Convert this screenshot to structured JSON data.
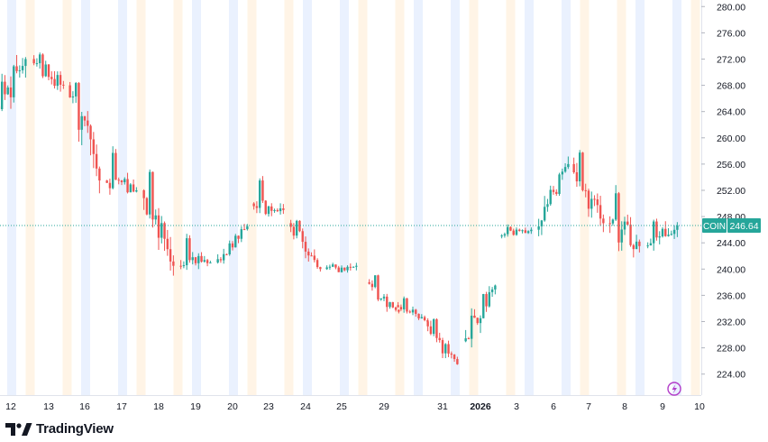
{
  "brand": {
    "logo_text": "TradingView"
  },
  "colors": {
    "up": "#26a69a",
    "down": "#ef5350",
    "price_line": "#26a69a",
    "band_blue": "#eaf1fe",
    "band_orange": "#fff4e6"
  },
  "chart_data": {
    "type": "candlestick",
    "symbol": "COIN",
    "last_price": "246.64",
    "ylim": [
      220.8,
      281.0
    ],
    "y_ticks": [
      "280.00",
      "276.00",
      "272.00",
      "268.00",
      "264.00",
      "260.00",
      "256.00",
      "252.00",
      "248.00",
      "244.00",
      "240.00",
      "236.00",
      "232.00",
      "228.00",
      "224.00"
    ],
    "x_ticks": [
      "12",
      "13",
      "16",
      "17",
      "18",
      "19",
      "20",
      "23",
      "24",
      "25",
      "29",
      "31",
      "2026",
      "3",
      "6",
      "7",
      "8",
      "9",
      "10"
    ],
    "sessions": [
      {
        "label": "12",
        "open": 264.0,
        "high": 278.5,
        "low": 263.5,
        "close": 272.0
      },
      {
        "label": "13",
        "open": 272.0,
        "high": 273.0,
        "low": 262.5,
        "close": 268.0
      },
      {
        "label": "16",
        "open": 268.0,
        "high": 268.5,
        "low": 248.0,
        "close": 253.5
      },
      {
        "label": "17",
        "open": 253.5,
        "high": 259.5,
        "low": 249.5,
        "close": 252.0
      },
      {
        "label": "18",
        "open": 252.0,
        "high": 256.0,
        "low": 239.0,
        "close": 240.5
      },
      {
        "label": "19",
        "open": 240.5,
        "high": 247.0,
        "low": 239.5,
        "close": 241.0
      },
      {
        "label": "20",
        "open": 241.0,
        "high": 248.0,
        "low": 240.5,
        "close": 246.5
      },
      {
        "label": "23",
        "open": 250.0,
        "high": 255.0,
        "low": 248.0,
        "close": 249.0
      },
      {
        "label": "24",
        "open": 247.0,
        "high": 247.5,
        "low": 238.5,
        "close": 240.0
      },
      {
        "label": "25",
        "open": 240.0,
        "high": 241.5,
        "low": 237.0,
        "close": 240.5
      },
      {
        "label": "29",
        "open": 238.0,
        "high": 239.5,
        "low": 233.0,
        "close": 233.5
      },
      {
        "label": "30",
        "open": 234.5,
        "high": 236.0,
        "low": 231.0,
        "close": 232.0
      },
      {
        "label": "31",
        "open": 232.0,
        "high": 232.5,
        "low": 224.8,
        "close": 225.5
      },
      {
        "label": "2026",
        "open": 229.0,
        "high": 238.5,
        "low": 226.0,
        "close": 237.5
      },
      {
        "label": "3",
        "open": 245.0,
        "high": 248.0,
        "low": 244.5,
        "close": 246.0
      },
      {
        "label": "6",
        "open": 246.0,
        "high": 259.0,
        "low": 245.0,
        "close": 256.0
      },
      {
        "label": "7",
        "open": 256.0,
        "high": 258.5,
        "low": 245.5,
        "close": 247.0
      },
      {
        "label": "8",
        "open": 247.0,
        "high": 253.5,
        "low": 240.5,
        "close": 243.5
      },
      {
        "label": "9",
        "open": 243.5,
        "high": 252.0,
        "low": 242.0,
        "close": 246.64
      }
    ]
  }
}
